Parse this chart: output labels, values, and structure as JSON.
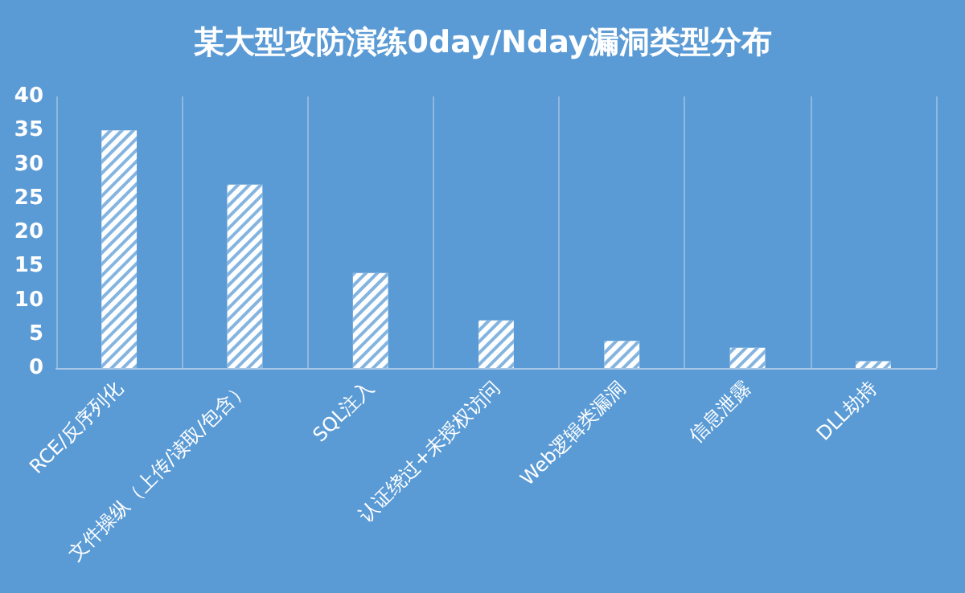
{
  "chart_data": {
    "type": "bar",
    "title": "某大型攻防演练0day/Nday漏洞类型分布",
    "categories": [
      "RCE/反序列化",
      "文件操纵（上传/读取/包含）",
      "SQL注入",
      "认证绕过+未授权访问",
      "Web逻辑类漏洞",
      "信息泄露",
      "DLL劫持"
    ],
    "values": [
      35,
      27,
      14,
      7,
      4,
      3,
      1
    ],
    "color": "#ffffff",
    "ylim": [
      0,
      40
    ],
    "yticks": [
      0,
      5,
      10,
      15,
      20,
      25,
      30,
      35,
      40
    ],
    "grid": "x"
  }
}
